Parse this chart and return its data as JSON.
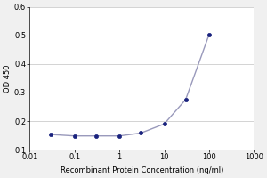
{
  "x_values": [
    0.03,
    0.1,
    0.3,
    1,
    3,
    10,
    30,
    100
  ],
  "y_values": [
    0.153,
    0.148,
    0.148,
    0.148,
    0.158,
    0.19,
    0.275,
    0.503
  ],
  "xlim": [
    0.01,
    1000
  ],
  "ylim": [
    0.1,
    0.6
  ],
  "yticks": [
    0.1,
    0.2,
    0.3,
    0.4,
    0.5,
    0.6
  ],
  "xtick_labels": [
    "0.01",
    "0.1",
    "1",
    "10",
    "100",
    "1000"
  ],
  "xtick_values": [
    0.01,
    0.1,
    1,
    10,
    100,
    1000
  ],
  "xlabel": "Recombinant Protein Concentration (ng/ml)",
  "ylabel": "OD 450",
  "line_color": "#9999bb",
  "marker_color": "#1a237e",
  "marker_size": 3,
  "line_width": 1.0,
  "bg_color": "#f0f0f0",
  "plot_bg_color": "#ffffff",
  "grid_color": "#cccccc",
  "font_size_label": 6,
  "font_size_tick": 6,
  "font_size_ylabel": 6
}
